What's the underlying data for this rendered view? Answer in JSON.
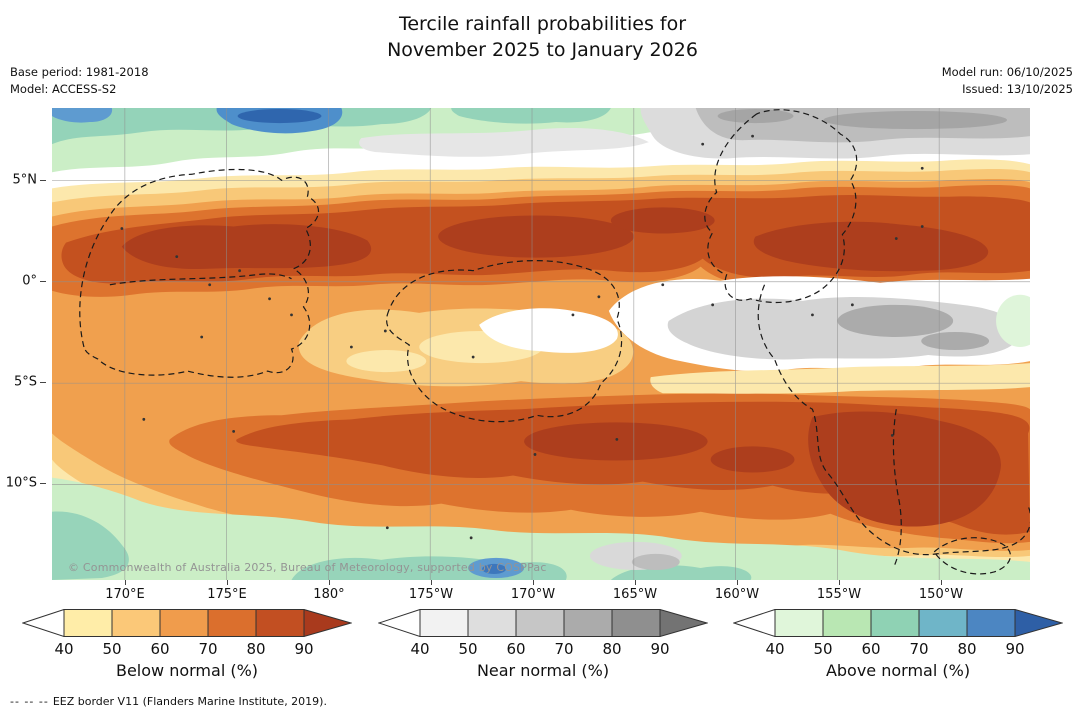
{
  "title": {
    "line1": "Tercile rainfall probabilities for",
    "line2": "November 2025 to January 2026"
  },
  "meta": {
    "base_period": "Base period: 1981-2018",
    "model": "Model: ACCESS-S2",
    "model_run": "Model run: 06/10/2025",
    "issued": "Issued: 13/10/2025"
  },
  "map": {
    "copyright": "© Commonwealth of Australia 2025, Bureau of Meteorology, supported by COSPPac",
    "lat_ticks": [
      "5°N",
      "0°",
      "5°S",
      "10°S"
    ],
    "lon_ticks": [
      "170°E",
      "175°E",
      "180°",
      "175°W",
      "170°W",
      "165°W",
      "160°W",
      "155°W",
      "150°W"
    ]
  },
  "legends": [
    {
      "label": "Below normal (%)",
      "ticks": [
        40,
        50,
        60,
        70,
        80,
        90
      ],
      "colors": [
        "#FFEDA8",
        "#FBC878",
        "#F09C4C",
        "#DB6F2D",
        "#C24F22"
      ],
      "arrow_left": "#FFFFFF",
      "arrow_right": "#A93A1D"
    },
    {
      "label": "Near normal (%)",
      "ticks": [
        40,
        50,
        60,
        70,
        80,
        90
      ],
      "colors": [
        "#F2F2F2",
        "#DEDEDE",
        "#C6C6C6",
        "#ABABAB",
        "#8F8F8F"
      ],
      "arrow_left": "#FFFFFF",
      "arrow_right": "#737373"
    },
    {
      "label": "Above normal (%)",
      "ticks": [
        40,
        50,
        60,
        70,
        80,
        90
      ],
      "colors": [
        "#E0F6DA",
        "#B9E7B3",
        "#8FD2B4",
        "#6FB5C8",
        "#4C86C2"
      ],
      "arrow_left": "#FFFFFF",
      "arrow_right": "#2E5FA6"
    }
  ],
  "footnote": {
    "dash_sample": "--  --  --",
    "text": "EEZ border V11 (Flanders Marine Institute, 2019)."
  }
}
